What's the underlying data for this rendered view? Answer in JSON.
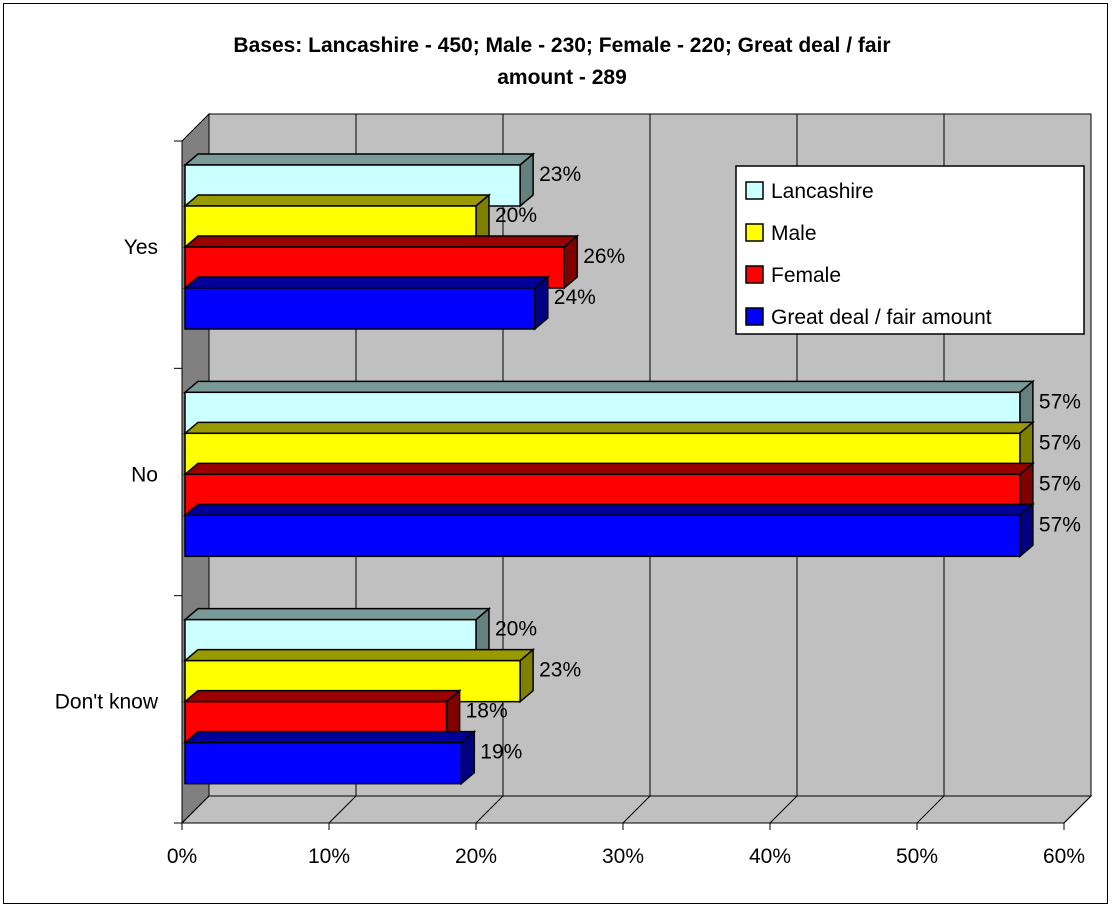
{
  "chart_data": {
    "type": "bar",
    "orientation": "horizontal",
    "three_d": true,
    "title_lines": [
      "Bases: Lancashire - 450; Male - 230; Female - 220; Great deal / fair",
      "amount - 289"
    ],
    "categories": [
      "Yes",
      "No",
      "Don't know"
    ],
    "series": [
      {
        "name": "Lancashire",
        "values": [
          23,
          57,
          20
        ],
        "labels": [
          "23%",
          "57%",
          "20%"
        ]
      },
      {
        "name": "Male",
        "values": [
          20,
          57,
          23
        ],
        "labels": [
          "20%",
          "57%",
          "23%"
        ]
      },
      {
        "name": "Female",
        "values": [
          26,
          57,
          18
        ],
        "labels": [
          "26%",
          "57%",
          "18%"
        ]
      },
      {
        "name": "Great deal / fair amount",
        "values": [
          24,
          57,
          19
        ],
        "labels": [
          "24%",
          "57%",
          "19%"
        ]
      }
    ],
    "xlim": [
      0,
      60
    ],
    "x_ticks": [
      0,
      10,
      20,
      30,
      40,
      50,
      60
    ],
    "x_tick_labels": [
      "0%",
      "10%",
      "20%",
      "30%",
      "40%",
      "50%",
      "60%"
    ],
    "xlabel": "",
    "ylabel": "",
    "grid": true,
    "legend_position": "top-right",
    "colors": {
      "Lancashire": "#ccffff",
      "Male": "#ffff00",
      "Female": "#ff0000",
      "Great deal / fair amount": "#0000ff",
      "plot_wall": "#c0c0c0",
      "side_wall": "#808080"
    }
  }
}
